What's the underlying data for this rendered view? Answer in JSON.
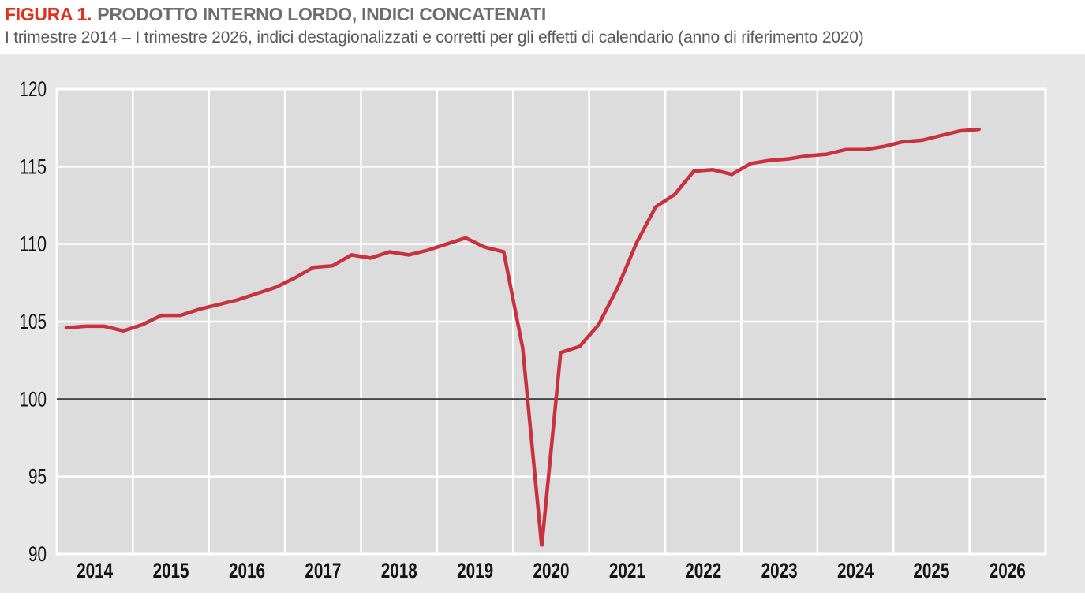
{
  "figure": {
    "label": "FIGURA 1.",
    "title": "PRODOTTO INTERNO LORDO, INDICI CONCATENATI",
    "subtitle": "I trimestre 2014 – I trimestre 2026, indici destagionalizzati e corretti per gli effetti di calendario (anno di riferimento 2020)"
  },
  "colors": {
    "accent_red": "#e0301f",
    "line_red": "#c7323e",
    "panel_bg": "#e7e7e7",
    "plot_bg": "#dcdcdc",
    "gridline": "#ffffff",
    "reference_line": "#454545",
    "tick_text": "#141414"
  },
  "chart_data": {
    "type": "line",
    "title": "PRODOTTO INTERNO LORDO, INDICI CONCATENATI",
    "x_axis": {
      "tick_labels": [
        "2014",
        "2015",
        "2016",
        "2017",
        "2018",
        "2019",
        "2020",
        "2021",
        "2022",
        "2023",
        "2024",
        "2025",
        "2026"
      ],
      "unit": "trimestre"
    },
    "y_axis": {
      "ticks": [
        90,
        95,
        100,
        105,
        110,
        115,
        120
      ],
      "range": [
        90,
        120
      ]
    },
    "reference_line": 100,
    "grid": true,
    "legend": false,
    "series": [
      {
        "color": "#c7323e",
        "quarters": [
          "2014-Q1",
          "2014-Q2",
          "2014-Q3",
          "2014-Q4",
          "2015-Q1",
          "2015-Q2",
          "2015-Q3",
          "2015-Q4",
          "2016-Q1",
          "2016-Q2",
          "2016-Q3",
          "2016-Q4",
          "2017-Q1",
          "2017-Q2",
          "2017-Q3",
          "2017-Q4",
          "2018-Q1",
          "2018-Q2",
          "2018-Q3",
          "2018-Q4",
          "2019-Q1",
          "2019-Q2",
          "2019-Q3",
          "2019-Q4",
          "2020-Q1",
          "2020-Q2",
          "2020-Q3",
          "2020-Q4",
          "2021-Q1",
          "2021-Q2",
          "2021-Q3",
          "2021-Q4",
          "2022-Q1",
          "2022-Q2",
          "2022-Q3",
          "2022-Q4",
          "2023-Q1",
          "2023-Q2",
          "2023-Q3",
          "2023-Q4",
          "2024-Q1",
          "2024-Q2",
          "2024-Q3",
          "2024-Q4",
          "2025-Q1",
          "2025-Q2",
          "2025-Q3",
          "2025-Q4",
          "2026-Q1"
        ],
        "values": [
          104.6,
          104.7,
          104.7,
          104.4,
          104.8,
          105.4,
          105.4,
          105.8,
          106.1,
          106.4,
          106.8,
          107.2,
          107.8,
          108.5,
          108.6,
          109.3,
          109.1,
          109.5,
          109.3,
          109.6,
          110.0,
          110.4,
          109.8,
          109.5,
          103.3,
          90.5,
          103.0,
          103.4,
          104.8,
          107.2,
          110.1,
          112.4,
          113.2,
          114.7,
          114.8,
          114.5,
          115.2,
          115.4,
          115.5,
          115.7,
          115.8,
          116.1,
          116.1,
          116.3,
          116.6,
          116.7,
          117.0,
          117.3,
          117.4
        ]
      }
    ]
  }
}
